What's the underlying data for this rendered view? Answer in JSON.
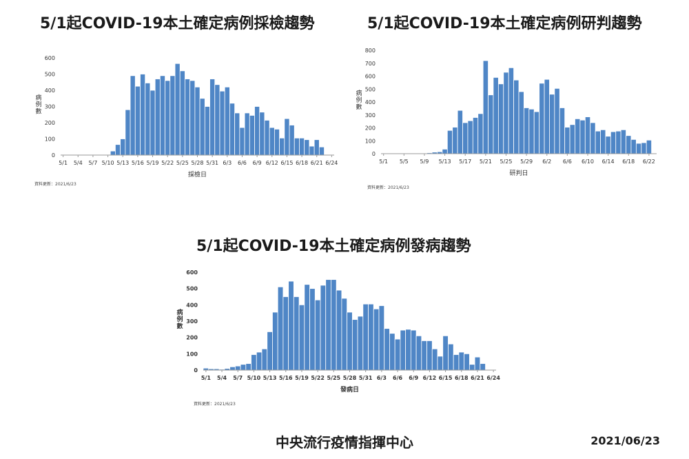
{
  "footer": {
    "agency": "中央流行疫情指揮中心",
    "date": "2021/06/23"
  },
  "chart_data": [
    {
      "type": "bar",
      "title": "5/1起COVID-19本土確定病例採檢趨勢",
      "xlabel": "採檢日",
      "ylabel": "病例數",
      "ylim": [
        0,
        600
      ],
      "yticks": [
        "0",
        "100",
        "200",
        "300",
        "400",
        "500",
        "600"
      ],
      "update_note": "資料更新：2021/6/23",
      "tick_labels": [
        "5/1",
        "5/4",
        "5/7",
        "5/10",
        "5/13",
        "5/16",
        "5/19",
        "5/22",
        "5/25",
        "5/28",
        "5/31",
        "6/3",
        "6/6",
        "6/9",
        "6/12",
        "6/15",
        "6/18",
        "6/21",
        "6/24"
      ],
      "categories": [
        "5/1",
        "5/2",
        "5/3",
        "5/4",
        "5/5",
        "5/6",
        "5/7",
        "5/8",
        "5/9",
        "5/10",
        "5/11",
        "5/12",
        "5/13",
        "5/14",
        "5/15",
        "5/16",
        "5/17",
        "5/18",
        "5/19",
        "5/20",
        "5/21",
        "5/22",
        "5/23",
        "5/24",
        "5/25",
        "5/26",
        "5/27",
        "5/28",
        "5/29",
        "5/30",
        "5/31",
        "6/1",
        "6/2",
        "6/3",
        "6/4",
        "6/5",
        "6/6",
        "6/7",
        "6/8",
        "6/9",
        "6/10",
        "6/11",
        "6/12",
        "6/13",
        "6/14",
        "6/15",
        "6/16",
        "6/17",
        "6/18",
        "6/19",
        "6/20",
        "6/21",
        "6/22",
        "6/23",
        "6/24"
      ],
      "values": [
        1,
        0,
        0,
        0,
        0,
        0,
        0,
        0,
        0,
        0,
        25,
        65,
        100,
        280,
        490,
        425,
        500,
        445,
        400,
        470,
        490,
        460,
        490,
        565,
        520,
        470,
        460,
        420,
        350,
        300,
        470,
        435,
        395,
        420,
        320,
        260,
        170,
        260,
        245,
        300,
        265,
        215,
        170,
        160,
        105,
        225,
        185,
        105,
        105,
        95,
        55,
        95,
        50,
        0,
        0
      ]
    },
    {
      "type": "bar",
      "title": "5/1起COVID-19本土確定病例研判趨勢",
      "xlabel": "研判日",
      "ylabel": "病例數",
      "ylim": [
        0,
        800
      ],
      "yticks": [
        "0",
        "100",
        "200",
        "300",
        "400",
        "500",
        "600",
        "700",
        "800"
      ],
      "update_note": "資料更新：2021/6/23",
      "tick_labels": [
        "5/1",
        "5/5",
        "5/9",
        "5/13",
        "5/17",
        "5/21",
        "5/25",
        "5/29",
        "6/2",
        "6/6",
        "6/10",
        "6/14",
        "6/18",
        "6/22"
      ],
      "categories": [
        "5/1",
        "5/2",
        "5/3",
        "5/4",
        "5/5",
        "5/6",
        "5/7",
        "5/8",
        "5/9",
        "5/10",
        "5/11",
        "5/12",
        "5/13",
        "5/14",
        "5/15",
        "5/16",
        "5/17",
        "5/18",
        "5/19",
        "5/20",
        "5/21",
        "5/22",
        "5/23",
        "5/24",
        "5/25",
        "5/26",
        "5/27",
        "5/28",
        "5/29",
        "5/30",
        "5/31",
        "6/1",
        "6/2",
        "6/3",
        "6/4",
        "6/5",
        "6/6",
        "6/7",
        "6/8",
        "6/9",
        "6/10",
        "6/11",
        "6/12",
        "6/13",
        "6/14",
        "6/15",
        "6/16",
        "6/17",
        "6/18",
        "6/19",
        "6/20",
        "6/21",
        "6/22",
        "6/23"
      ],
      "values": [
        3,
        0,
        0,
        0,
        0,
        0,
        0,
        0,
        0,
        7,
        12,
        15,
        35,
        180,
        205,
        335,
        240,
        255,
        280,
        310,
        720,
        455,
        590,
        540,
        630,
        665,
        570,
        480,
        355,
        345,
        325,
        545,
        575,
        460,
        505,
        355,
        205,
        225,
        270,
        260,
        285,
        240,
        175,
        185,
        135,
        170,
        175,
        185,
        140,
        110,
        80,
        85,
        105,
        0
      ]
    },
    {
      "type": "bar",
      "title": "5/1起COVID-19本土確定病例發病趨勢",
      "xlabel": "發病日",
      "ylabel": "病例數",
      "ylim": [
        0,
        600
      ],
      "yticks": [
        "0",
        "100",
        "200",
        "300",
        "400",
        "500",
        "600"
      ],
      "update_note": "資料更新：2021/6/23",
      "tick_labels": [
        "5/1",
        "5/4",
        "5/7",
        "5/10",
        "5/13",
        "5/16",
        "5/19",
        "5/22",
        "5/25",
        "5/28",
        "5/31",
        "6/3",
        "6/6",
        "6/9",
        "6/12",
        "6/15",
        "6/18",
        "6/21",
        "6/24"
      ],
      "categories": [
        "5/1",
        "5/2",
        "5/3",
        "5/4",
        "5/5",
        "5/6",
        "5/7",
        "5/8",
        "5/9",
        "5/10",
        "5/11",
        "5/12",
        "5/13",
        "5/14",
        "5/15",
        "5/16",
        "5/17",
        "5/18",
        "5/19",
        "5/20",
        "5/21",
        "5/22",
        "5/23",
        "5/24",
        "5/25",
        "5/26",
        "5/27",
        "5/28",
        "5/29",
        "5/30",
        "5/31",
        "6/1",
        "6/2",
        "6/3",
        "6/4",
        "6/5",
        "6/6",
        "6/7",
        "6/8",
        "6/9",
        "6/10",
        "6/11",
        "6/12",
        "6/13",
        "6/14",
        "6/15",
        "6/16",
        "6/17",
        "6/18",
        "6/19",
        "6/20",
        "6/21",
        "6/22",
        "6/23",
        "6/24"
      ],
      "values": [
        12,
        8,
        8,
        5,
        10,
        20,
        25,
        35,
        40,
        95,
        110,
        130,
        235,
        355,
        510,
        450,
        545,
        450,
        400,
        525,
        500,
        430,
        520,
        555,
        555,
        490,
        440,
        355,
        310,
        330,
        405,
        405,
        375,
        395,
        255,
        225,
        190,
        245,
        250,
        245,
        210,
        180,
        180,
        130,
        85,
        210,
        160,
        95,
        110,
        100,
        35,
        80,
        40,
        0,
        0
      ]
    }
  ]
}
